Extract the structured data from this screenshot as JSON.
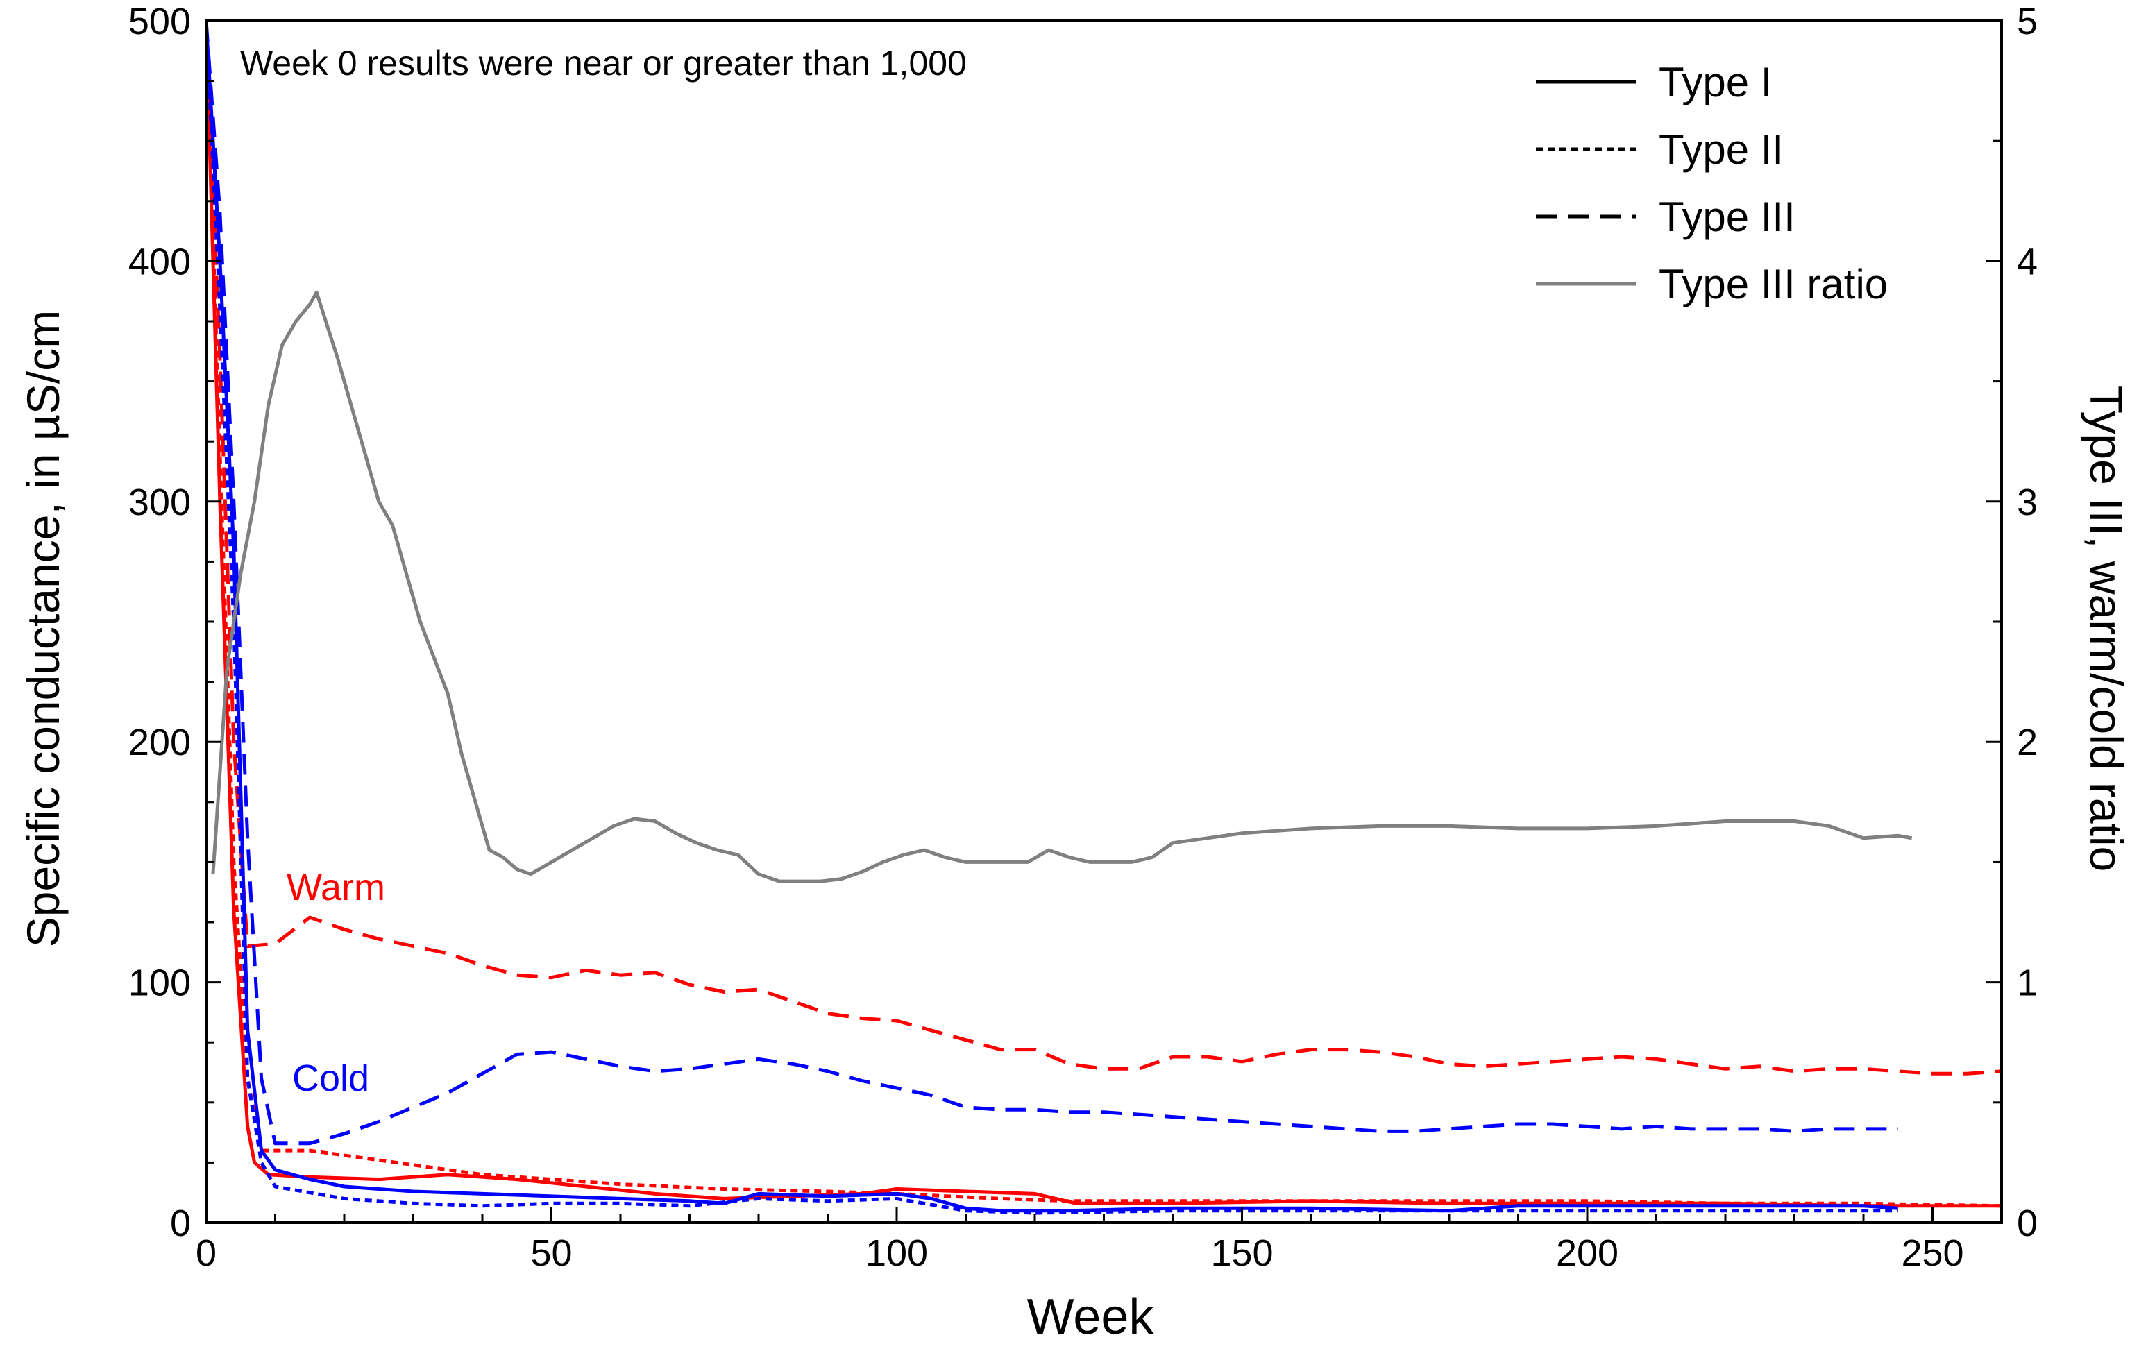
{
  "chart_data": {
    "type": "line",
    "title": "",
    "annotation": "Week 0 results were near or greater than 1,000",
    "xlabel": "Week",
    "ylabel": "Specific conductance, in  µS/cm",
    "y2label": "Type III, warm/cold ratio",
    "xlim": [
      0,
      260
    ],
    "ylim": [
      0,
      500
    ],
    "y2lim": [
      0,
      5
    ],
    "x_ticks": [
      0,
      50,
      100,
      150,
      200,
      250
    ],
    "y_ticks": [
      0,
      100,
      200,
      300,
      400,
      500
    ],
    "y2_ticks": [
      0,
      1,
      2,
      3,
      4,
      5
    ],
    "colors": {
      "warm": "#ff0000",
      "cold": "#0000ff",
      "ratio": "#808080",
      "legend": "#000000"
    },
    "legend": [
      {
        "label": "Type I",
        "style": "solid"
      },
      {
        "label": "Type II",
        "style": "dotted"
      },
      {
        "label": "Type III",
        "style": "dashed"
      },
      {
        "label": "Type III ratio",
        "style": "ratio"
      }
    ],
    "labels": {
      "warm": "Warm",
      "cold": "Cold"
    },
    "series": [
      {
        "name": "Warm Type I",
        "group": "warm",
        "style": "solid",
        "axis": "left",
        "points": [
          [
            0,
            500
          ],
          [
            2,
            300
          ],
          [
            4,
            130
          ],
          [
            6,
            40
          ],
          [
            7,
            25
          ],
          [
            9,
            20
          ],
          [
            15,
            19
          ],
          [
            25,
            18
          ],
          [
            35,
            20
          ],
          [
            45,
            18
          ],
          [
            55,
            15
          ],
          [
            65,
            12
          ],
          [
            75,
            10
          ],
          [
            85,
            11
          ],
          [
            95,
            12
          ],
          [
            100,
            14
          ],
          [
            110,
            13
          ],
          [
            120,
            12
          ],
          [
            126,
            8
          ],
          [
            140,
            8
          ],
          [
            160,
            9
          ],
          [
            180,
            8
          ],
          [
            200,
            8
          ],
          [
            220,
            8
          ],
          [
            240,
            7
          ],
          [
            260,
            7
          ]
        ]
      },
      {
        "name": "Warm Type II",
        "group": "warm",
        "style": "dotted",
        "axis": "left",
        "points": [
          [
            0,
            500
          ],
          [
            2,
            320
          ],
          [
            4,
            150
          ],
          [
            6,
            60
          ],
          [
            8,
            30
          ],
          [
            15,
            30
          ],
          [
            25,
            26
          ],
          [
            40,
            20
          ],
          [
            50,
            18
          ],
          [
            60,
            16
          ],
          [
            75,
            14
          ],
          [
            90,
            13
          ],
          [
            100,
            12
          ],
          [
            115,
            10
          ],
          [
            125,
            9
          ],
          [
            140,
            9
          ],
          [
            160,
            9
          ],
          [
            180,
            9
          ],
          [
            200,
            9
          ],
          [
            220,
            8
          ],
          [
            240,
            8
          ],
          [
            260,
            7
          ]
        ]
      },
      {
        "name": "Warm Type III",
        "group": "warm",
        "style": "dashed",
        "axis": "left",
        "points": [
          [
            0,
            500
          ],
          [
            2,
            360
          ],
          [
            4,
            200
          ],
          [
            6,
            115
          ],
          [
            10,
            116
          ],
          [
            15,
            127
          ],
          [
            20,
            122
          ],
          [
            25,
            118
          ],
          [
            30,
            115
          ],
          [
            35,
            112
          ],
          [
            40,
            107
          ],
          [
            45,
            103
          ],
          [
            50,
            102
          ],
          [
            55,
            105
          ],
          [
            60,
            103
          ],
          [
            65,
            104
          ],
          [
            70,
            99
          ],
          [
            75,
            96
          ],
          [
            80,
            97
          ],
          [
            85,
            92
          ],
          [
            90,
            87
          ],
          [
            95,
            85
          ],
          [
            100,
            84
          ],
          [
            105,
            80
          ],
          [
            110,
            76
          ],
          [
            115,
            72
          ],
          [
            120,
            72
          ],
          [
            125,
            66
          ],
          [
            130,
            64
          ],
          [
            135,
            64
          ],
          [
            140,
            69
          ],
          [
            145,
            69
          ],
          [
            150,
            67
          ],
          [
            155,
            70
          ],
          [
            160,
            72
          ],
          [
            165,
            72
          ],
          [
            170,
            71
          ],
          [
            175,
            69
          ],
          [
            180,
            66
          ],
          [
            185,
            65
          ],
          [
            190,
            66
          ],
          [
            195,
            67
          ],
          [
            200,
            68
          ],
          [
            205,
            69
          ],
          [
            210,
            68
          ],
          [
            215,
            66
          ],
          [
            220,
            64
          ],
          [
            225,
            65
          ],
          [
            230,
            63
          ],
          [
            235,
            64
          ],
          [
            240,
            64
          ],
          [
            245,
            63
          ],
          [
            250,
            62
          ],
          [
            255,
            62
          ],
          [
            260,
            63
          ]
        ]
      },
      {
        "name": "Cold Type I",
        "group": "cold",
        "style": "solid",
        "axis": "left",
        "points": [
          [
            0,
            500
          ],
          [
            2,
            400
          ],
          [
            4,
            280
          ],
          [
            6,
            80
          ],
          [
            8,
            30
          ],
          [
            10,
            22
          ],
          [
            15,
            18
          ],
          [
            20,
            15
          ],
          [
            30,
            13
          ],
          [
            40,
            12
          ],
          [
            50,
            11
          ],
          [
            60,
            10
          ],
          [
            70,
            9
          ],
          [
            75,
            8
          ],
          [
            80,
            12
          ],
          [
            90,
            11
          ],
          [
            100,
            12
          ],
          [
            105,
            10
          ],
          [
            110,
            6
          ],
          [
            115,
            5
          ],
          [
            125,
            5
          ],
          [
            140,
            6
          ],
          [
            160,
            6
          ],
          [
            180,
            5
          ],
          [
            190,
            7
          ],
          [
            200,
            7
          ],
          [
            220,
            7
          ],
          [
            240,
            7
          ],
          [
            245,
            6
          ]
        ]
      },
      {
        "name": "Cold Type II",
        "group": "cold",
        "style": "dotted",
        "axis": "left",
        "points": [
          [
            0,
            500
          ],
          [
            2,
            380
          ],
          [
            4,
            250
          ],
          [
            6,
            60
          ],
          [
            8,
            25
          ],
          [
            10,
            15
          ],
          [
            20,
            10
          ],
          [
            30,
            8
          ],
          [
            40,
            7
          ],
          [
            50,
            8
          ],
          [
            60,
            8
          ],
          [
            70,
            7
          ],
          [
            80,
            10
          ],
          [
            90,
            9
          ],
          [
            100,
            10
          ],
          [
            110,
            5
          ],
          [
            120,
            4
          ],
          [
            140,
            5
          ],
          [
            160,
            5
          ],
          [
            180,
            5
          ],
          [
            200,
            5
          ],
          [
            220,
            5
          ],
          [
            240,
            5
          ],
          [
            245,
            5
          ]
        ]
      },
      {
        "name": "Cold Type III",
        "group": "cold",
        "style": "dashed",
        "axis": "left",
        "points": [
          [
            0,
            500
          ],
          [
            2,
            420
          ],
          [
            4,
            300
          ],
          [
            6,
            160
          ],
          [
            8,
            60
          ],
          [
            10,
            33
          ],
          [
            15,
            33
          ],
          [
            20,
            37
          ],
          [
            25,
            42
          ],
          [
            30,
            48
          ],
          [
            35,
            54
          ],
          [
            40,
            62
          ],
          [
            45,
            70
          ],
          [
            50,
            71
          ],
          [
            55,
            68
          ],
          [
            60,
            65
          ],
          [
            65,
            63
          ],
          [
            70,
            64
          ],
          [
            75,
            66
          ],
          [
            80,
            68
          ],
          [
            85,
            66
          ],
          [
            90,
            63
          ],
          [
            95,
            59
          ],
          [
            100,
            56
          ],
          [
            105,
            53
          ],
          [
            110,
            48
          ],
          [
            115,
            47
          ],
          [
            120,
            47
          ],
          [
            125,
            46
          ],
          [
            130,
            46
          ],
          [
            135,
            45
          ],
          [
            140,
            44
          ],
          [
            145,
            43
          ],
          [
            150,
            42
          ],
          [
            155,
            41
          ],
          [
            160,
            40
          ],
          [
            165,
            39
          ],
          [
            170,
            38
          ],
          [
            175,
            38
          ],
          [
            180,
            39
          ],
          [
            185,
            40
          ],
          [
            190,
            41
          ],
          [
            195,
            41
          ],
          [
            200,
            40
          ],
          [
            205,
            39
          ],
          [
            210,
            40
          ],
          [
            215,
            39
          ],
          [
            220,
            39
          ],
          [
            225,
            39
          ],
          [
            230,
            38
          ],
          [
            235,
            39
          ],
          [
            240,
            39
          ],
          [
            245,
            39
          ]
        ]
      },
      {
        "name": "Type III ratio",
        "group": "ratio",
        "style": "ratio",
        "axis": "right",
        "points": [
          [
            1,
            1.45
          ],
          [
            3,
            2.3
          ],
          [
            5,
            2.7
          ],
          [
            7,
            3.0
          ],
          [
            9,
            3.4
          ],
          [
            11,
            3.65
          ],
          [
            13,
            3.75
          ],
          [
            15,
            3.82
          ],
          [
            16,
            3.87
          ],
          [
            17,
            3.78
          ],
          [
            19,
            3.6
          ],
          [
            21,
            3.4
          ],
          [
            23,
            3.2
          ],
          [
            25,
            3.0
          ],
          [
            27,
            2.9
          ],
          [
            29,
            2.7
          ],
          [
            31,
            2.5
          ],
          [
            33,
            2.35
          ],
          [
            35,
            2.2
          ],
          [
            37,
            1.95
          ],
          [
            39,
            1.75
          ],
          [
            41,
            1.55
          ],
          [
            43,
            1.52
          ],
          [
            45,
            1.47
          ],
          [
            47,
            1.45
          ],
          [
            50,
            1.5
          ],
          [
            53,
            1.55
          ],
          [
            56,
            1.6
          ],
          [
            59,
            1.65
          ],
          [
            62,
            1.68
          ],
          [
            65,
            1.67
          ],
          [
            68,
            1.62
          ],
          [
            71,
            1.58
          ],
          [
            74,
            1.55
          ],
          [
            77,
            1.53
          ],
          [
            80,
            1.45
          ],
          [
            83,
            1.42
          ],
          [
            86,
            1.42
          ],
          [
            89,
            1.42
          ],
          [
            92,
            1.43
          ],
          [
            95,
            1.46
          ],
          [
            98,
            1.5
          ],
          [
            101,
            1.53
          ],
          [
            104,
            1.55
          ],
          [
            107,
            1.52
          ],
          [
            110,
            1.5
          ],
          [
            113,
            1.5
          ],
          [
            116,
            1.5
          ],
          [
            119,
            1.5
          ],
          [
            122,
            1.55
          ],
          [
            125,
            1.52
          ],
          [
            128,
            1.5
          ],
          [
            131,
            1.5
          ],
          [
            134,
            1.5
          ],
          [
            137,
            1.52
          ],
          [
            140,
            1.58
          ],
          [
            145,
            1.6
          ],
          [
            150,
            1.62
          ],
          [
            160,
            1.64
          ],
          [
            170,
            1.65
          ],
          [
            180,
            1.65
          ],
          [
            190,
            1.64
          ],
          [
            200,
            1.64
          ],
          [
            210,
            1.65
          ],
          [
            220,
            1.67
          ],
          [
            230,
            1.67
          ],
          [
            235,
            1.65
          ],
          [
            240,
            1.6
          ],
          [
            245,
            1.61
          ],
          [
            247,
            1.6
          ]
        ]
      }
    ]
  }
}
